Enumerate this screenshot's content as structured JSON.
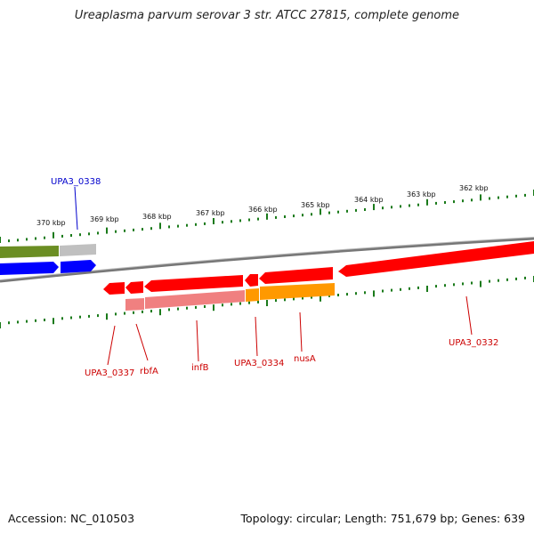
{
  "title": "Ureaplasma parvum serovar 3 str. ATCC 27815, complete genome",
  "footer": {
    "accession": "Accession: NC_010503",
    "info": "Topology: circular; Length: 751,679 bp; Genes: 639"
  },
  "colors": {
    "backbone": "#8a8a8a",
    "tick": "#1a7a1a",
    "label_red": "#cc0000",
    "label_blue": "#0000cc",
    "gene_red": "#ff0000",
    "gene_blue": "#0000ff",
    "gene_green": "#6b8e23",
    "gene_grey": "#bdbdbd",
    "gene_orange": "#ff9900",
    "gene_pink": "#f08080"
  },
  "kbp_labels": [
    {
      "kbp": 370,
      "text": "370 kbp"
    },
    {
      "kbp": 369,
      "text": "369 kbp"
    },
    {
      "kbp": 368,
      "text": "368 kbp"
    },
    {
      "kbp": 367,
      "text": "367 kbp"
    },
    {
      "kbp": 366,
      "text": "366 kbp"
    },
    {
      "kbp": 365,
      "text": "365 kbp"
    },
    {
      "kbp": 364,
      "text": "364 kbp"
    },
    {
      "kbp": 363,
      "text": "363 kbp"
    },
    {
      "kbp": 362,
      "text": "362 kbp"
    }
  ],
  "gene_labels": [
    {
      "name": "UPA3_0338",
      "color": "blue"
    },
    {
      "name": "UPA3_0337",
      "color": "red"
    },
    {
      "name": "rbfA",
      "color": "red"
    },
    {
      "name": "infB",
      "color": "red"
    },
    {
      "name": "UPA3_0334",
      "color": "red"
    },
    {
      "name": "nusA",
      "color": "red"
    },
    {
      "name": "UPA3_0332",
      "color": "red"
    }
  ]
}
